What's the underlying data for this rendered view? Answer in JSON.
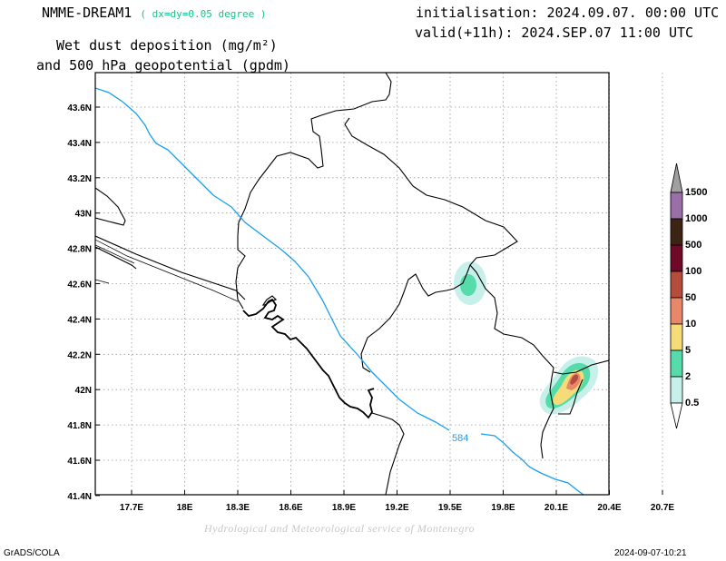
{
  "header": {
    "model_name": "NMME-DREAM1",
    "resolution_note": "( dx=dy=0.05 degree )",
    "title_line1": "Wet dust deposition (mg/m²)",
    "title_line2": "and 500 hPa geopotential (gpdm)",
    "initialisation": "initialisation: 2024.09.07. 00:00 UTC",
    "valid": "valid(+11h): 2024.SEP.07 11:00 UTC"
  },
  "map": {
    "lon_ticks": [
      "17.7E",
      "18E",
      "18.3E",
      "18.6E",
      "18.9E",
      "19.2E",
      "19.5E",
      "19.8E",
      "20.1E",
      "20.4E",
      "20.7E"
    ],
    "lat_ticks": [
      "43.6N",
      "43.4N",
      "43.2N",
      "43N",
      "42.8N",
      "42.6N",
      "42.4N",
      "42.2N",
      "42N",
      "41.8N",
      "41.6N",
      "41.4N"
    ],
    "contour_label": "584",
    "contour_color": "#1a9ff0",
    "grid": true
  },
  "legend": {
    "labels": [
      "1500",
      "1000",
      "500",
      "100",
      "50",
      "10",
      "5",
      "2",
      "0.5"
    ],
    "colors": [
      "#a0a0a0",
      "#9a6ea6",
      "#3c2314",
      "#6e0a28",
      "#b54d3c",
      "#e8876a",
      "#f5dc78",
      "#55dcaa",
      "#c8f0eb"
    ]
  },
  "footer": {
    "credit": "Hydrological and Meteorological service of Montenegro",
    "software": "GrADS/COLA",
    "timestamp": "2024-09-07-10:21"
  }
}
